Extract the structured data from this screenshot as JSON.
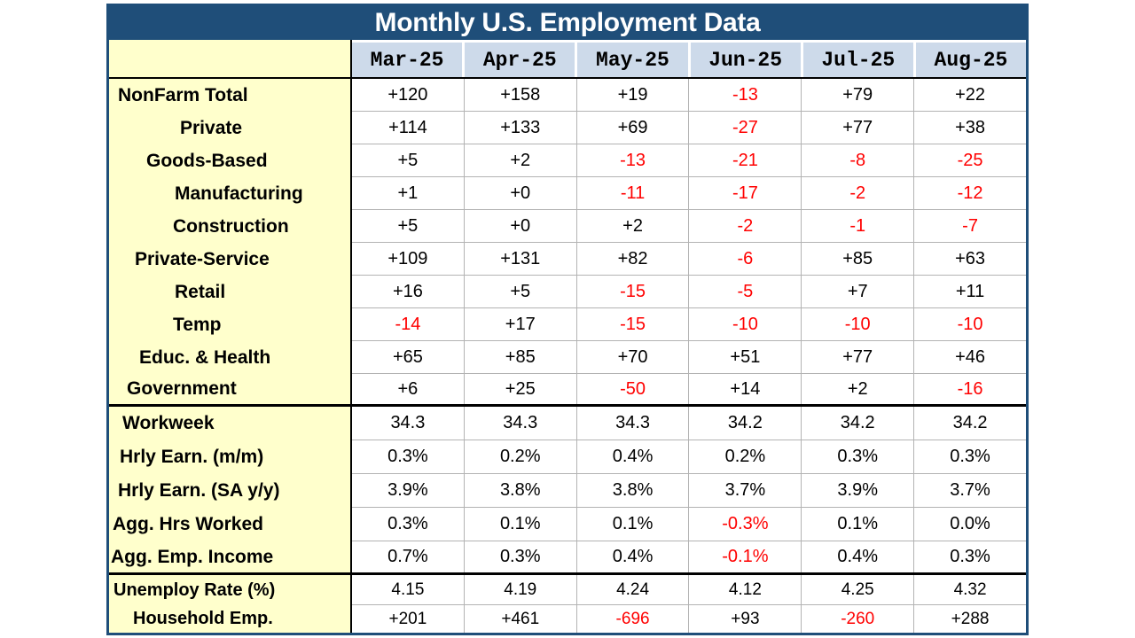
{
  "title": "Monthly U.S. Employment Data",
  "colors": {
    "title_bg": "#1F4E79",
    "title_text": "#FFFFFF",
    "header_bg": "#CDDAEA",
    "label_bg": "#FFFFCC",
    "negative_value": "#FF0000",
    "grid_line": "#B3B3B3",
    "section_line": "#000000"
  },
  "chart_data": {
    "type": "table",
    "title": "Monthly U.S. Employment Data",
    "columns": [
      "Mar-25",
      "Apr-25",
      "May-25",
      "Jun-25",
      "Jul-25",
      "Aug-25"
    ],
    "sections": [
      {
        "name": "payroll-employment",
        "rows": [
          {
            "label": "NonFarm Total",
            "indent": 10,
            "values": [
              "+120",
              "+158",
              "+19",
              "-13",
              "+79",
              "+22"
            ]
          },
          {
            "label": "Private",
            "indent": 80,
            "values": [
              "+114",
              "+133",
              "+69",
              "-27",
              "+77",
              "+38"
            ]
          },
          {
            "label": "Goods-Based",
            "indent": 42,
            "values": [
              "+5",
              "+2",
              "-13",
              "-21",
              "-8",
              "-25"
            ]
          },
          {
            "label": "Manufacturing",
            "indent": 74,
            "values": [
              "+1",
              "+0",
              "-11",
              "-17",
              "-2",
              "-12"
            ]
          },
          {
            "label": "Construction",
            "indent": 72,
            "values": [
              "+5",
              "+0",
              "+2",
              "-2",
              "-1",
              "-7"
            ]
          },
          {
            "label": "Private-Service",
            "indent": 29,
            "values": [
              "+109",
              "+131",
              "+82",
              "-6",
              "+85",
              "+63"
            ]
          },
          {
            "label": "Retail",
            "indent": 74,
            "values": [
              "+16",
              "+5",
              "-15",
              "-5",
              "+7",
              "+11"
            ]
          },
          {
            "label": "Temp",
            "indent": 72,
            "values": [
              "-14",
              "+17",
              "-15",
              "-10",
              "-10",
              "-10"
            ]
          },
          {
            "label": "Educ. & Health",
            "indent": 34,
            "values": [
              "+65",
              "+85",
              "+70",
              "+51",
              "+77",
              "+46"
            ]
          },
          {
            "label": "Government",
            "indent": 20,
            "values": [
              "+6",
              "+25",
              "-50",
              "+14",
              "+2",
              "-16"
            ]
          }
        ]
      },
      {
        "name": "hours-and-earnings",
        "rows": [
          {
            "label": "Workweek",
            "indent": 15,
            "values": [
              "34.3",
              "34.3",
              "34.3",
              "34.2",
              "34.2",
              "34.2"
            ]
          },
          {
            "label": "Hrly Earn. (m/m)",
            "indent": 12,
            "values": [
              "0.3%",
              "0.2%",
              "0.4%",
              "0.2%",
              "0.3%",
              "0.3%"
            ]
          },
          {
            "label": "Hrly Earn. (SA y/y)",
            "indent": 10,
            "values": [
              "3.9%",
              "3.8%",
              "3.8%",
              "3.7%",
              "3.9%",
              "3.7%"
            ]
          },
          {
            "label": "Agg. Hrs Worked",
            "indent": 4,
            "values": [
              "0.3%",
              "0.1%",
              "0.1%",
              "-0.3%",
              "0.1%",
              "0.0%"
            ]
          },
          {
            "label": "Agg. Emp. Income",
            "indent": 2,
            "values": [
              "0.7%",
              "0.3%",
              "0.4%",
              "-0.1%",
              "0.4%",
              "0.3%"
            ]
          }
        ]
      },
      {
        "name": "household-survey",
        "rows": [
          {
            "label": "Unemploy Rate (%)",
            "indent": 5,
            "values": [
              "4.15",
              "4.19",
              "4.24",
              "4.12",
              "4.25",
              "4.32"
            ]
          },
          {
            "label": "Household Emp.",
            "indent": 27,
            "values": [
              "+201",
              "+461",
              "-696",
              "+93",
              "-260",
              "+288"
            ]
          }
        ]
      }
    ]
  }
}
